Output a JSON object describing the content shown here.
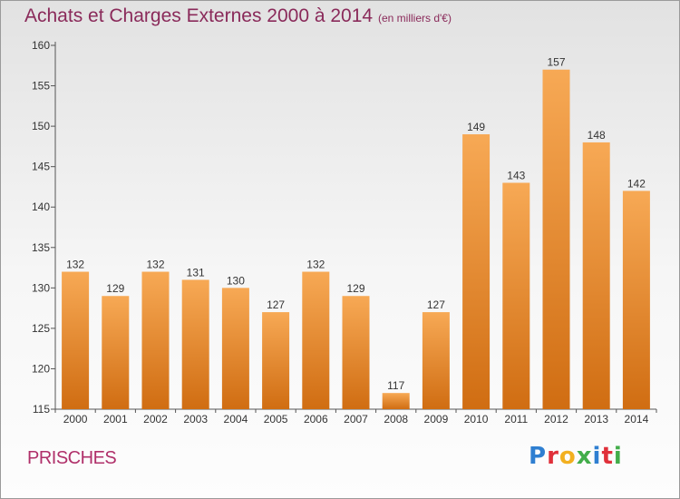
{
  "header": {
    "title": "Achats et Charges Externes 2000 à 2014",
    "subtitle": "(en milliers d'€)"
  },
  "footer": {
    "place": "PRISCHES",
    "logo": [
      "P",
      "r",
      "o",
      "x",
      "i",
      "t",
      "i"
    ]
  },
  "colors": {
    "bar_top": "#f7a955",
    "bar_bottom": "#d06d12",
    "axis": "#555555",
    "title": "#8a2a5a",
    "place": "#b0306a"
  },
  "chart_data": {
    "type": "bar",
    "title": "Achats et Charges Externes 2000 à 2014",
    "subtitle": "(en milliers d'€)",
    "categories": [
      "2000",
      "2001",
      "2002",
      "2003",
      "2004",
      "2005",
      "2006",
      "2007",
      "2008",
      "2009",
      "2010",
      "2011",
      "2012",
      "2013",
      "2014"
    ],
    "values": [
      132,
      129,
      132,
      131,
      130,
      127,
      132,
      129,
      117,
      127,
      149,
      143,
      157,
      148,
      142
    ],
    "ylim": [
      115,
      160
    ],
    "yticks": [
      115,
      120,
      125,
      130,
      135,
      140,
      145,
      150,
      155,
      160
    ],
    "xlabel": "",
    "ylabel": "",
    "grid": false,
    "data_labels": true
  }
}
